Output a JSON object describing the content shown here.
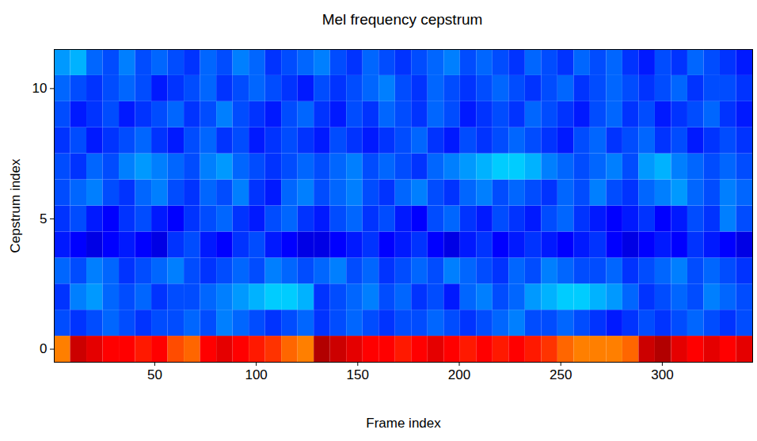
{
  "chart_data": {
    "type": "heatmap",
    "title": "Mel frequency cepstrum",
    "x_label": "Frame index",
    "y_label": "Cepstrum index",
    "xlim": [
      0.5,
      344.5
    ],
    "ylim": [
      -0.5,
      11.5
    ],
    "xticks": [
      50,
      100,
      150,
      200,
      250,
      300
    ],
    "yticks": [
      0,
      5,
      10
    ],
    "color_range": [
      -20,
      20
    ],
    "frame_edges": [
      0.5,
      8.5,
      16.5,
      24.5,
      32.5,
      40.5,
      48.5,
      56.5,
      64.5,
      72.5,
      80.5,
      88.5,
      96.5,
      104.5,
      112.5,
      120.5,
      128.5,
      136.5,
      144.5,
      152.5,
      160.5,
      168.5,
      176.5,
      184.5,
      192.5,
      200.5,
      208.5,
      216.5,
      224.5,
      232.5,
      240.5,
      248.5,
      256.5,
      264.5,
      272.5,
      280.5,
      288.5,
      296.5,
      304.5,
      312.5,
      320.5,
      328.5,
      336.5,
      344.5
    ],
    "cepstrum_index": [
      0,
      1,
      2,
      3,
      4,
      5,
      6,
      7,
      8,
      9,
      10,
      11
    ],
    "cells": [
      [
        10,
        17,
        16,
        15,
        15,
        14,
        15,
        12,
        11,
        15,
        16,
        15,
        14,
        13,
        11,
        10,
        18,
        17,
        16,
        15,
        15,
        14,
        15,
        16,
        15,
        14,
        15,
        14,
        15,
        14,
        13,
        11,
        10,
        10,
        10,
        11,
        17,
        18,
        16,
        15,
        16,
        15,
        16
      ],
      [
        -12,
        -13,
        -12,
        -11,
        -12,
        -13,
        -12,
        -12,
        -11,
        -12,
        -10,
        -11,
        -12,
        -13,
        -12,
        -11,
        -13,
        -12,
        -11,
        -12,
        -13,
        -12,
        -12,
        -11,
        -12,
        -13,
        -12,
        -11,
        -10,
        -12,
        -12,
        -11,
        -12,
        -13,
        -14,
        -13,
        -12,
        -13,
        -12,
        -11,
        -12,
        -13,
        -12
      ],
      [
        -13,
        -10,
        -9,
        -11,
        -12,
        -11,
        -13,
        -12,
        -12,
        -11,
        -10,
        -9,
        -8,
        -7,
        -7,
        -8,
        -13,
        -12,
        -11,
        -10,
        -12,
        -11,
        -13,
        -12,
        -14,
        -11,
        -10,
        -12,
        -11,
        -9,
        -8,
        -7,
        -7,
        -8,
        -9,
        -11,
        -13,
        -12,
        -11,
        -12,
        -10,
        -11,
        -12
      ],
      [
        -11,
        -12,
        -10,
        -11,
        -13,
        -12,
        -11,
        -10,
        -12,
        -13,
        -12,
        -11,
        -12,
        -10,
        -11,
        -12,
        -11,
        -10,
        -12,
        -11,
        -13,
        -12,
        -11,
        -12,
        -10,
        -11,
        -12,
        -13,
        -11,
        -12,
        -10,
        -11,
        -12,
        -12,
        -11,
        -13,
        -12,
        -11,
        -10,
        -12,
        -11,
        -12,
        -13
      ],
      [
        -14,
        -15,
        -16,
        -15,
        -14,
        -15,
        -16,
        -13,
        -12,
        -14,
        -15,
        -13,
        -12,
        -14,
        -15,
        -16,
        -16,
        -15,
        -14,
        -13,
        -15,
        -14,
        -13,
        -15,
        -16,
        -14,
        -13,
        -15,
        -14,
        -13,
        -14,
        -15,
        -14,
        -13,
        -15,
        -16,
        -15,
        -14,
        -15,
        -13,
        -14,
        -15,
        -16
      ],
      [
        -13,
        -12,
        -14,
        -15,
        -13,
        -12,
        -14,
        -15,
        -13,
        -12,
        -11,
        -13,
        -14,
        -12,
        -11,
        -13,
        -14,
        -12,
        -11,
        -13,
        -12,
        -14,
        -15,
        -12,
        -11,
        -13,
        -14,
        -12,
        -13,
        -14,
        -12,
        -11,
        -13,
        -14,
        -15,
        -14,
        -13,
        -15,
        -14,
        -12,
        -13,
        -10,
        -12
      ],
      [
        -12,
        -11,
        -10,
        -12,
        -13,
        -11,
        -10,
        -12,
        -13,
        -11,
        -12,
        -10,
        -13,
        -14,
        -11,
        -10,
        -12,
        -11,
        -10,
        -12,
        -13,
        -11,
        -10,
        -12,
        -13,
        -11,
        -10,
        -12,
        -11,
        -12,
        -13,
        -11,
        -12,
        -10,
        -12,
        -13,
        -11,
        -10,
        -9,
        -11,
        -12,
        -10,
        -11
      ],
      [
        -12,
        -13,
        -11,
        -12,
        -10,
        -9,
        -10,
        -11,
        -12,
        -10,
        -9,
        -11,
        -12,
        -13,
        -12,
        -11,
        -12,
        -11,
        -10,
        -12,
        -11,
        -12,
        -13,
        -11,
        -10,
        -9,
        -8,
        -7,
        -7,
        -8,
        -10,
        -11,
        -12,
        -11,
        -10,
        -12,
        -9,
        -8,
        -10,
        -11,
        -12,
        -11,
        -12
      ],
      [
        -13,
        -12,
        -14,
        -13,
        -12,
        -11,
        -13,
        -14,
        -12,
        -11,
        -13,
        -12,
        -14,
        -13,
        -12,
        -13,
        -14,
        -12,
        -13,
        -14,
        -13,
        -12,
        -11,
        -13,
        -14,
        -12,
        -13,
        -12,
        -11,
        -12,
        -13,
        -14,
        -12,
        -11,
        -13,
        -12,
        -11,
        -13,
        -12,
        -14,
        -13,
        -12,
        -13
      ],
      [
        -12,
        -14,
        -13,
        -12,
        -14,
        -13,
        -12,
        -11,
        -13,
        -12,
        -10,
        -12,
        -13,
        -14,
        -12,
        -11,
        -13,
        -14,
        -12,
        -13,
        -11,
        -12,
        -13,
        -11,
        -12,
        -14,
        -13,
        -12,
        -13,
        -11,
        -12,
        -13,
        -14,
        -12,
        -11,
        -13,
        -12,
        -14,
        -13,
        -12,
        -11,
        -13,
        -14
      ],
      [
        -11,
        -12,
        -13,
        -12,
        -11,
        -12,
        -14,
        -13,
        -12,
        -11,
        -13,
        -12,
        -11,
        -12,
        -13,
        -14,
        -12,
        -13,
        -12,
        -11,
        -10,
        -12,
        -13,
        -11,
        -12,
        -13,
        -12,
        -11,
        -12,
        -13,
        -12,
        -11,
        -13,
        -12,
        -11,
        -12,
        -13,
        -12,
        -11,
        -13,
        -12,
        -12,
        -13
      ],
      [
        -9,
        -8,
        -11,
        -12,
        -10,
        -12,
        -11,
        -12,
        -13,
        -11,
        -12,
        -10,
        -11,
        -13,
        -12,
        -11,
        -10,
        -12,
        -13,
        -11,
        -12,
        -13,
        -12,
        -11,
        -10,
        -12,
        -11,
        -12,
        -13,
        -11,
        -12,
        -13,
        -11,
        -12,
        -11,
        -13,
        -14,
        -12,
        -13,
        -11,
        -12,
        -13,
        -14
      ]
    ]
  }
}
